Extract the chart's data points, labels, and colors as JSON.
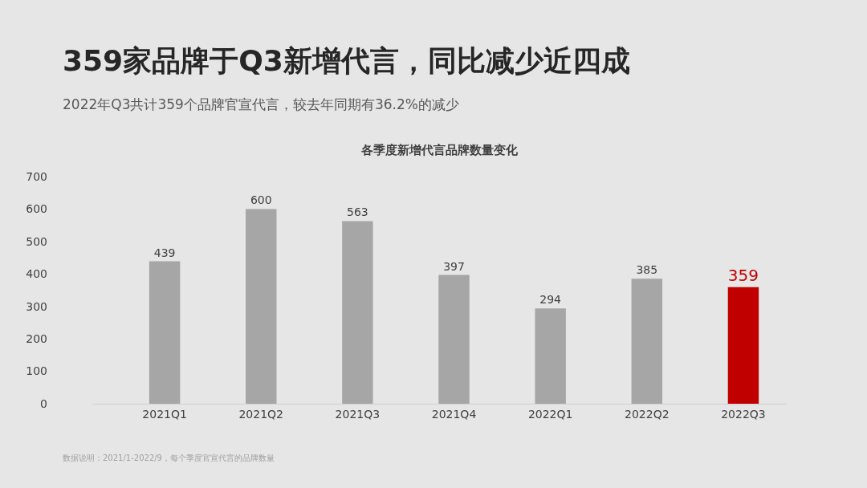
{
  "chart_data": {
    "type": "bar",
    "title": "359家品牌于Q3新增代言，同比减少近四成",
    "subtitle": "2022年Q3共计359个品牌官宣代言，较去年同期有36.2%的减少",
    "annotations": [
      "各季度新增代言品牌数量变化",
      "数据说明：2021/1-2022/9，每个季度官宣代言的品牌数量"
    ],
    "categories": [
      "2021Q1",
      "2021Q2",
      "2021Q3",
      "2021Q4",
      "2022Q1",
      "2022Q2",
      "2022Q3"
    ],
    "values": [
      439,
      600,
      563,
      397,
      294,
      385,
      359
    ],
    "colors": [
      "#a6a6a6",
      "#a6a6a6",
      "#a6a6a6",
      "#a6a6a6",
      "#a6a6a6",
      "#a6a6a6",
      "#c00000"
    ],
    "ylim": [
      0,
      700
    ],
    "yticks": [
      0,
      100,
      200,
      300,
      400,
      500,
      600,
      700
    ],
    "grid": false,
    "legend": false,
    "data_labels": true
  }
}
